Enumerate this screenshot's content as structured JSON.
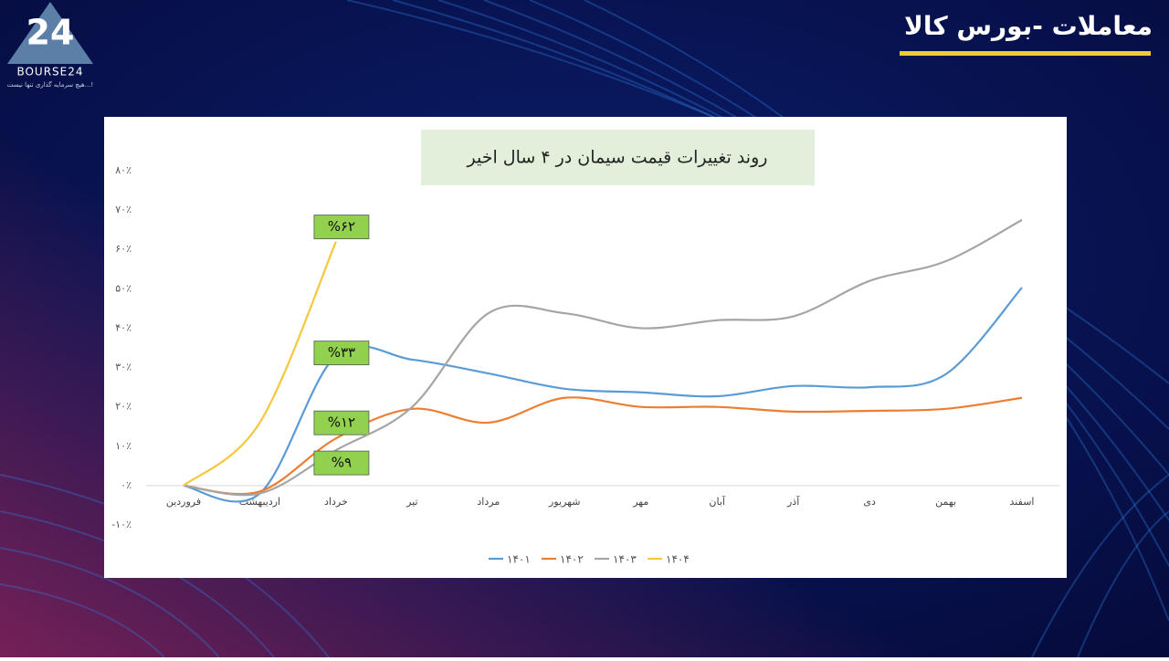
{
  "header": {
    "title": "معاملات -بورس کالا"
  },
  "logo": {
    "mark": "24",
    "name": "BOURSE24",
    "tagline": "هیچ سرمایه گذاری تنها نیست...!"
  },
  "chart_data": {
    "type": "line",
    "title": "روند تغییرات قیمت سیمان در ۴ سال اخیر",
    "categories": [
      "فروردین",
      "اردیبهشت",
      "خرداد",
      "تیر",
      "مرداد",
      "شهریور",
      "مهر",
      "آبان",
      "آذر",
      "دی",
      "بهمن",
      "اسفند"
    ],
    "series": [
      {
        "name": "۱۴۰۱",
        "color": "#5b9bd5",
        "values": [
          0,
          -2,
          33,
          32,
          28.5,
          24.6,
          23.7,
          22.7,
          25.3,
          25,
          28.3,
          50.3
        ],
        "value_labels": [
          null,
          null,
          "%۳۳",
          null,
          null,
          null,
          null,
          null,
          null,
          null,
          null,
          null
        ]
      },
      {
        "name": "۱۴۰۲",
        "color": "#ed7d31",
        "values": [
          0,
          -1.5,
          12,
          19.5,
          16,
          22.3,
          20,
          20,
          18.8,
          19,
          19.5,
          22.3
        ],
        "value_labels": [
          null,
          null,
          "%۱۲",
          null,
          null,
          null,
          null,
          null,
          null,
          null,
          null,
          null
        ]
      },
      {
        "name": "۱۴۰۳",
        "color": "#a5a5a5",
        "values": [
          0,
          -2,
          9,
          20,
          43.8,
          43.8,
          40,
          42,
          43,
          52,
          57,
          67.5
        ],
        "value_labels": [
          null,
          null,
          "%۹",
          null,
          null,
          null,
          null,
          null,
          null,
          null,
          null,
          null
        ]
      },
      {
        "name": "۱۴۰۴",
        "color": "#f5c83b",
        "values": [
          0,
          16,
          62,
          null,
          null,
          null,
          null,
          null,
          null,
          null,
          null,
          null
        ],
        "value_labels": [
          null,
          null,
          "%۶۲",
          null,
          null,
          null,
          null,
          null,
          null,
          null,
          null,
          null
        ]
      }
    ],
    "ylim": [
      -10,
      80
    ],
    "yticks": [
      {
        "value": -10,
        "label": "-۱۰٪"
      },
      {
        "value": 0,
        "label": "۰٪"
      },
      {
        "value": 10,
        "label": "۱۰٪"
      },
      {
        "value": 20,
        "label": "۲۰٪"
      },
      {
        "value": 30,
        "label": "۳۰٪"
      },
      {
        "value": 40,
        "label": "۴۰٪"
      },
      {
        "value": 50,
        "label": "۵۰٪"
      },
      {
        "value": 60,
        "label": "۶۰٪"
      },
      {
        "value": 70,
        "label": "۷۰٪"
      },
      {
        "value": 80,
        "label": "۸۰٪"
      }
    ],
    "legend": "bottom"
  }
}
